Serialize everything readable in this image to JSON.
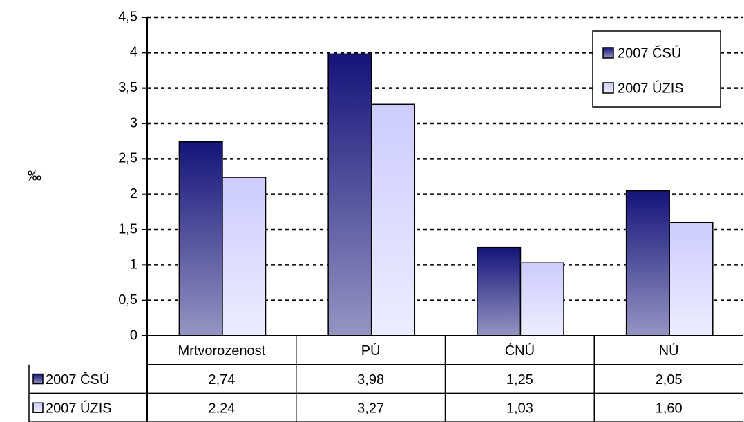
{
  "chart_data": {
    "type": "bar",
    "y_label": "‰",
    "categories": [
      "Mrtvorozenost",
      "PÚ",
      "ĆNÚ",
      "NÚ"
    ],
    "series": [
      {
        "name": "2007 ČSÚ",
        "color": "#14147a",
        "values": [
          2.74,
          3.98,
          1.25,
          2.05
        ],
        "value_labels": [
          "2,74",
          "3,98",
          "1,25",
          "2,05"
        ]
      },
      {
        "name": "2007 ÚZIS",
        "color": "#ccccff",
        "values": [
          2.24,
          3.27,
          1.03,
          1.6
        ],
        "value_labels": [
          "2,24",
          "3,27",
          "1,03",
          "1,60"
        ]
      }
    ],
    "ylim": [
      0,
      4.5
    ],
    "yticks": [
      0,
      {
        "value": 0.5,
        "label": "0,5"
      },
      1,
      {
        "value": 1.5,
        "label": "1,5"
      },
      2,
      {
        "value": 2.5,
        "label": "2,5"
      },
      3,
      {
        "value": 3.5,
        "label": "3,5"
      },
      4,
      {
        "value": 4.5,
        "label": "4,5"
      }
    ],
    "grid": true,
    "legend": "top-right"
  }
}
